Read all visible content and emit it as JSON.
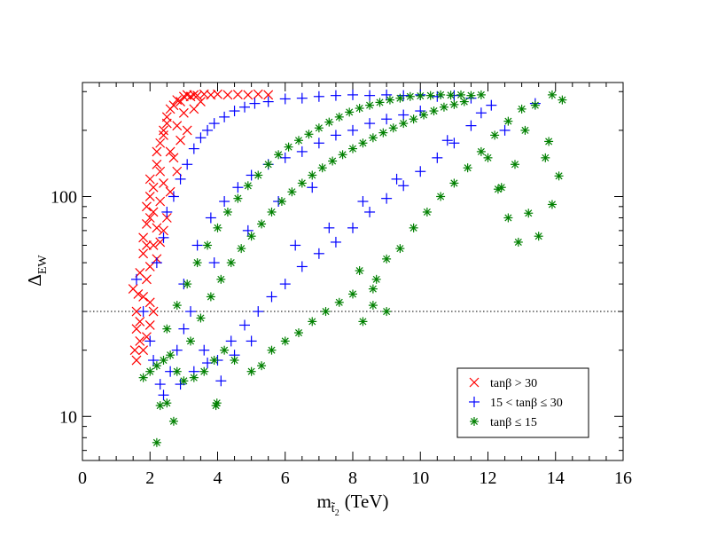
{
  "chart_data": {
    "type": "scatter",
    "title": "",
    "xlabel": {
      "base": "m",
      "sub": "t̃",
      "subsub": "2",
      "unit": "(TeV)"
    },
    "ylabel": {
      "base": "Δ",
      "sub": "EW"
    },
    "x_range": [
      0,
      16
    ],
    "y_range": [
      6.3,
      330
    ],
    "y_scale": "log",
    "x_ticks": [
      "0",
      "2",
      "4",
      "6",
      "8",
      "10",
      "12",
      "14",
      "16"
    ],
    "y_ticks": [
      "10",
      "100"
    ],
    "reference_line": {
      "y": 30,
      "style": "dotted"
    },
    "legend_position": "bottom-right",
    "series": [
      {
        "name": "tanβ > 30",
        "marker": "x",
        "color": "#ff0000",
        "points": [
          [
            1.5,
            38
          ],
          [
            1.6,
            30
          ],
          [
            1.6,
            25
          ],
          [
            1.55,
            20
          ],
          [
            1.6,
            18
          ],
          [
            1.7,
            27
          ],
          [
            1.7,
            45
          ],
          [
            1.8,
            55
          ],
          [
            1.8,
            65
          ],
          [
            1.9,
            75
          ],
          [
            1.9,
            90
          ],
          [
            2.0,
            100
          ],
          [
            2.0,
            120
          ],
          [
            2.1,
            110
          ],
          [
            2.1,
            85
          ],
          [
            2.2,
            140
          ],
          [
            2.2,
            160
          ],
          [
            2.3,
            130
          ],
          [
            2.3,
            175
          ],
          [
            2.4,
            200
          ],
          [
            2.4,
            190
          ],
          [
            2.5,
            230
          ],
          [
            2.5,
            215
          ],
          [
            2.6,
            250
          ],
          [
            2.7,
            260
          ],
          [
            2.8,
            275
          ],
          [
            2.9,
            270
          ],
          [
            3.0,
            285
          ],
          [
            3.1,
            290
          ],
          [
            3.2,
            285
          ],
          [
            3.3,
            290
          ],
          [
            3.4,
            288
          ],
          [
            3.6,
            292
          ],
          [
            3.8,
            290
          ],
          [
            4.0,
            292
          ],
          [
            4.3,
            290
          ],
          [
            4.6,
            291
          ],
          [
            4.9,
            290
          ],
          [
            5.2,
            292
          ],
          [
            5.5,
            290
          ],
          [
            2.0,
            48
          ],
          [
            2.1,
            60
          ],
          [
            2.2,
            72
          ],
          [
            2.3,
            95
          ],
          [
            2.4,
            115
          ],
          [
            2.6,
            160
          ],
          [
            2.8,
            210
          ],
          [
            3.0,
            240
          ],
          [
            2.9,
            180
          ],
          [
            2.7,
            150
          ],
          [
            1.8,
            35
          ],
          [
            1.9,
            42
          ],
          [
            2.0,
            33
          ],
          [
            2.2,
            52
          ],
          [
            2.5,
            80
          ],
          [
            2.6,
            105
          ],
          [
            2.8,
            130
          ],
          [
            3.1,
            200
          ],
          [
            3.3,
            250
          ],
          [
            3.5,
            270
          ],
          [
            1.7,
            22
          ],
          [
            1.8,
            20
          ],
          [
            1.9,
            23
          ],
          [
            2.0,
            26
          ],
          [
            2.1,
            30
          ],
          [
            1.65,
            36
          ],
          [
            2.3,
            62
          ],
          [
            2.4,
            70
          ],
          [
            2.0,
            80
          ],
          [
            1.9,
            60
          ]
        ]
      },
      {
        "name": "15 < tanβ ≤ 30",
        "marker": "+",
        "color": "#0000ff",
        "points": [
          [
            1.6,
            42
          ],
          [
            1.8,
            30
          ],
          [
            2.0,
            22
          ],
          [
            2.1,
            18
          ],
          [
            2.3,
            14
          ],
          [
            2.4,
            12.5
          ],
          [
            2.6,
            16
          ],
          [
            2.8,
            20
          ],
          [
            3.0,
            25
          ],
          [
            3.2,
            30
          ],
          [
            2.2,
            50
          ],
          [
            2.4,
            65
          ],
          [
            2.5,
            85
          ],
          [
            2.7,
            100
          ],
          [
            2.9,
            120
          ],
          [
            3.1,
            140
          ],
          [
            3.3,
            165
          ],
          [
            3.5,
            185
          ],
          [
            3.7,
            200
          ],
          [
            3.9,
            215
          ],
          [
            4.2,
            230
          ],
          [
            4.5,
            245
          ],
          [
            4.8,
            255
          ],
          [
            5.1,
            265
          ],
          [
            5.5,
            270
          ],
          [
            6.0,
            278
          ],
          [
            6.5,
            280
          ],
          [
            7.0,
            285
          ],
          [
            7.5,
            288
          ],
          [
            8.0,
            290
          ],
          [
            8.5,
            288
          ],
          [
            9.0,
            290
          ],
          [
            9.5,
            288
          ],
          [
            10.0,
            290
          ],
          [
            10.5,
            285
          ],
          [
            11.0,
            288
          ],
          [
            11.5,
            280
          ],
          [
            3.6,
            20
          ],
          [
            4.0,
            18
          ],
          [
            4.4,
            22
          ],
          [
            4.8,
            26
          ],
          [
            5.2,
            30
          ],
          [
            5.6,
            35
          ],
          [
            6.0,
            40
          ],
          [
            6.5,
            48
          ],
          [
            7.0,
            55
          ],
          [
            7.5,
            62
          ],
          [
            8.0,
            72
          ],
          [
            8.5,
            85
          ],
          [
            9.0,
            98
          ],
          [
            9.5,
            112
          ],
          [
            10.0,
            130
          ],
          [
            10.5,
            150
          ],
          [
            11.0,
            175
          ],
          [
            11.5,
            210
          ],
          [
            3.4,
            60
          ],
          [
            3.8,
            80
          ],
          [
            4.2,
            95
          ],
          [
            4.6,
            110
          ],
          [
            5.0,
            125
          ],
          [
            5.5,
            140
          ],
          [
            6.0,
            150
          ],
          [
            6.5,
            160
          ],
          [
            7.0,
            175
          ],
          [
            7.5,
            190
          ],
          [
            8.0,
            200
          ],
          [
            8.5,
            215
          ],
          [
            9.0,
            225
          ],
          [
            9.5,
            235
          ],
          [
            10.0,
            245
          ],
          [
            2.9,
            14
          ],
          [
            3.3,
            16
          ],
          [
            3.7,
            17.5
          ],
          [
            4.1,
            14.5
          ],
          [
            4.5,
            19
          ],
          [
            5.0,
            22
          ],
          [
            6.3,
            60
          ],
          [
            7.3,
            72
          ],
          [
            8.3,
            95
          ],
          [
            9.3,
            120
          ],
          [
            11.8,
            240
          ],
          [
            12.1,
            260
          ],
          [
            13.4,
            265
          ],
          [
            12.5,
            200
          ],
          [
            10.8,
            180
          ],
          [
            6.8,
            110
          ],
          [
            5.8,
            95
          ],
          [
            4.9,
            70
          ],
          [
            3.9,
            50
          ],
          [
            3.0,
            40
          ]
        ]
      },
      {
        "name": "tanβ ≤ 15",
        "marker": "*",
        "color": "#008000",
        "points": [
          [
            2.2,
            7.6
          ],
          [
            2.7,
            9.5
          ],
          [
            2.3,
            11.2
          ],
          [
            2.5,
            11.5
          ],
          [
            3.95,
            11.2
          ],
          [
            3.98,
            11.5
          ],
          [
            1.8,
            15
          ],
          [
            2.0,
            16
          ],
          [
            2.2,
            17
          ],
          [
            2.4,
            18
          ],
          [
            2.6,
            19
          ],
          [
            2.8,
            16
          ],
          [
            3.0,
            14.5
          ],
          [
            3.3,
            15
          ],
          [
            3.6,
            16
          ],
          [
            3.9,
            18
          ],
          [
            4.2,
            20
          ],
          [
            4.5,
            18
          ],
          [
            5.0,
            16
          ],
          [
            5.3,
            17
          ],
          [
            5.6,
            20
          ],
          [
            6.0,
            22
          ],
          [
            6.4,
            24
          ],
          [
            6.8,
            27
          ],
          [
            7.2,
            30
          ],
          [
            7.6,
            33
          ],
          [
            8.0,
            36
          ],
          [
            8.3,
            27
          ],
          [
            8.6,
            32
          ],
          [
            9.0,
            30
          ],
          [
            9.0,
            52
          ],
          [
            8.7,
            42
          ],
          [
            8.2,
            46
          ],
          [
            8.6,
            38
          ],
          [
            9.4,
            58
          ],
          [
            9.8,
            72
          ],
          [
            10.2,
            85
          ],
          [
            10.6,
            100
          ],
          [
            11.0,
            115
          ],
          [
            11.4,
            135
          ],
          [
            11.8,
            160
          ],
          [
            12.2,
            190
          ],
          [
            12.6,
            220
          ],
          [
            13.0,
            250
          ],
          [
            13.4,
            260
          ],
          [
            13.9,
            290
          ],
          [
            14.2,
            275
          ],
          [
            12.3,
            108
          ],
          [
            12.6,
            80
          ],
          [
            12.9,
            62
          ],
          [
            13.2,
            84
          ],
          [
            13.5,
            66
          ],
          [
            13.7,
            150
          ],
          [
            13.9,
            92
          ],
          [
            14.1,
            124
          ],
          [
            13.8,
            178
          ],
          [
            12.4,
            110
          ],
          [
            12.8,
            140
          ],
          [
            13.1,
            200
          ],
          [
            12.0,
            150
          ],
          [
            2.5,
            25
          ],
          [
            2.8,
            32
          ],
          [
            3.1,
            40
          ],
          [
            3.4,
            50
          ],
          [
            3.7,
            60
          ],
          [
            4.0,
            72
          ],
          [
            4.3,
            85
          ],
          [
            4.6,
            98
          ],
          [
            4.9,
            112
          ],
          [
            5.2,
            125
          ],
          [
            5.5,
            140
          ],
          [
            5.8,
            155
          ],
          [
            6.1,
            168
          ],
          [
            6.4,
            180
          ],
          [
            6.7,
            192
          ],
          [
            7.0,
            205
          ],
          [
            7.3,
            218
          ],
          [
            7.6,
            230
          ],
          [
            7.9,
            242
          ],
          [
            8.2,
            252
          ],
          [
            8.5,
            260
          ],
          [
            8.8,
            268
          ],
          [
            9.1,
            275
          ],
          [
            9.4,
            280
          ],
          [
            9.7,
            285
          ],
          [
            10.0,
            287
          ],
          [
            10.3,
            288
          ],
          [
            10.6,
            290
          ],
          [
            10.9,
            289
          ],
          [
            11.2,
            290
          ],
          [
            11.5,
            288
          ],
          [
            11.8,
            290
          ],
          [
            3.2,
            22
          ],
          [
            3.5,
            28
          ],
          [
            3.8,
            35
          ],
          [
            4.1,
            42
          ],
          [
            4.4,
            50
          ],
          [
            4.7,
            58
          ],
          [
            5.0,
            66
          ],
          [
            5.3,
            75
          ],
          [
            5.6,
            85
          ],
          [
            5.9,
            95
          ],
          [
            6.2,
            105
          ],
          [
            6.5,
            115
          ],
          [
            6.8,
            125
          ],
          [
            7.1,
            135
          ],
          [
            7.4,
            145
          ],
          [
            7.7,
            155
          ],
          [
            8.0,
            165
          ],
          [
            8.3,
            175
          ],
          [
            8.6,
            185
          ],
          [
            8.9,
            195
          ],
          [
            9.2,
            205
          ],
          [
            9.5,
            215
          ],
          [
            9.8,
            225
          ],
          [
            10.1,
            235
          ],
          [
            10.4,
            245
          ],
          [
            10.7,
            255
          ],
          [
            11.0,
            262
          ],
          [
            11.3,
            270
          ]
        ]
      }
    ]
  }
}
